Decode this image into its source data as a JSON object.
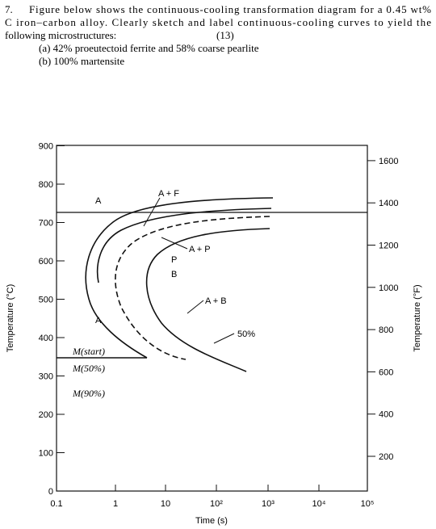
{
  "question": {
    "number": "7.",
    "lines": [
      "Figure below shows the continuous-cooling transformation diagram for a 0.45 wt%",
      "C iron–carbon alloy. Clearly sketch and label continuous-cooling curves to yield the",
      "following microstructures:"
    ],
    "marks": "(13)",
    "parts": [
      "(a) 42% proeutectoid ferrite and 58% coarse pearlite",
      "(b) 100% martensite"
    ]
  },
  "figure": {
    "y_left_label": "Temperature (°C)",
    "y_right_label": "Temperature (°F)",
    "x_label": "Time (s)",
    "y_left_ticks": [
      "0",
      "100",
      "200",
      "300",
      "400",
      "500",
      "600",
      "700",
      "800",
      "900"
    ],
    "y_right_ticks": [
      "200",
      "400",
      "600",
      "800",
      "1000",
      "1200",
      "1400",
      "1600"
    ],
    "x_ticks": [
      "0.1",
      "1",
      "10",
      "10²",
      "10³",
      "10⁴",
      "10⁵"
    ],
    "region_labels": [
      "A",
      "A + F",
      "A + P",
      "P",
      "B",
      "A + B",
      "A",
      "50%"
    ],
    "martensite_labels": [
      "M(start)",
      "M(50%)",
      "M(90%)"
    ]
  }
}
